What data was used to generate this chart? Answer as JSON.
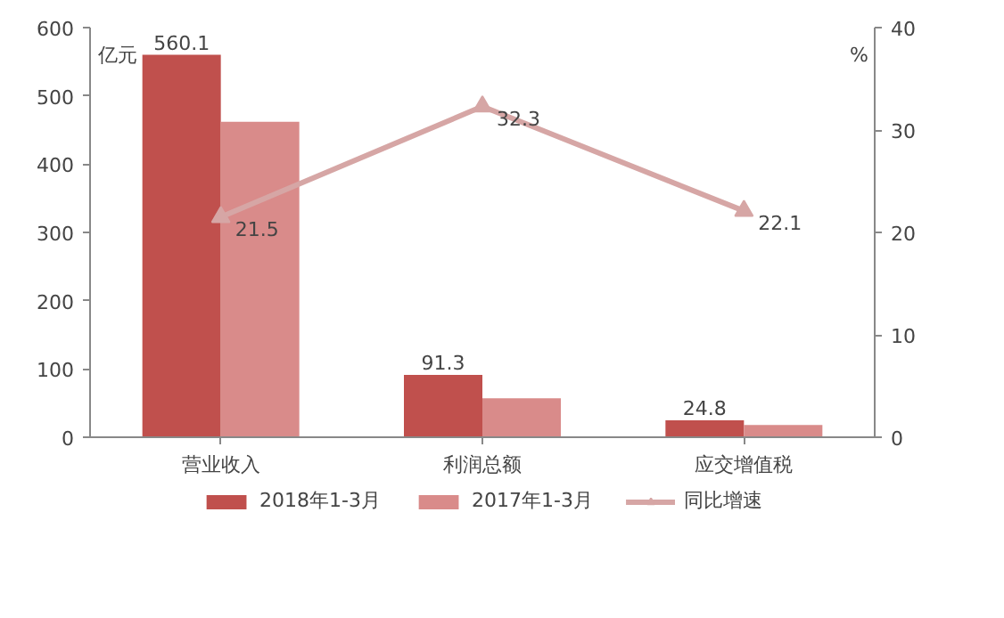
{
  "chart_data": {
    "type": "bar",
    "categories": [
      "营业收入",
      "利润总额",
      "应交增值税"
    ],
    "ylabel": "亿元",
    "y2label": "%",
    "ylim": [
      0,
      600
    ],
    "yticks": [
      0,
      100,
      200,
      300,
      400,
      500,
      600
    ],
    "y2lim": [
      0,
      40
    ],
    "y2ticks": [
      0,
      10,
      20,
      30,
      40
    ],
    "grid": false,
    "legend": "bottom",
    "series": [
      {
        "name": "2018年1-3月",
        "color": "#c0504d",
        "values": [
          560.1,
          91.3,
          24.8
        ],
        "value_labels": [
          "560.1",
          "91.3",
          "24.8"
        ]
      },
      {
        "name": "2017年1-3月",
        "color": "#d98b8a",
        "values": [
          462,
          57,
          18
        ]
      },
      {
        "name": "同比增速",
        "type": "line",
        "axis": "y2",
        "marker": "triangle",
        "color": "#d6a6a5",
        "values": [
          21.5,
          32.3,
          22.1
        ],
        "value_labels": [
          "21.5",
          "32.3",
          "22.1"
        ]
      }
    ]
  }
}
